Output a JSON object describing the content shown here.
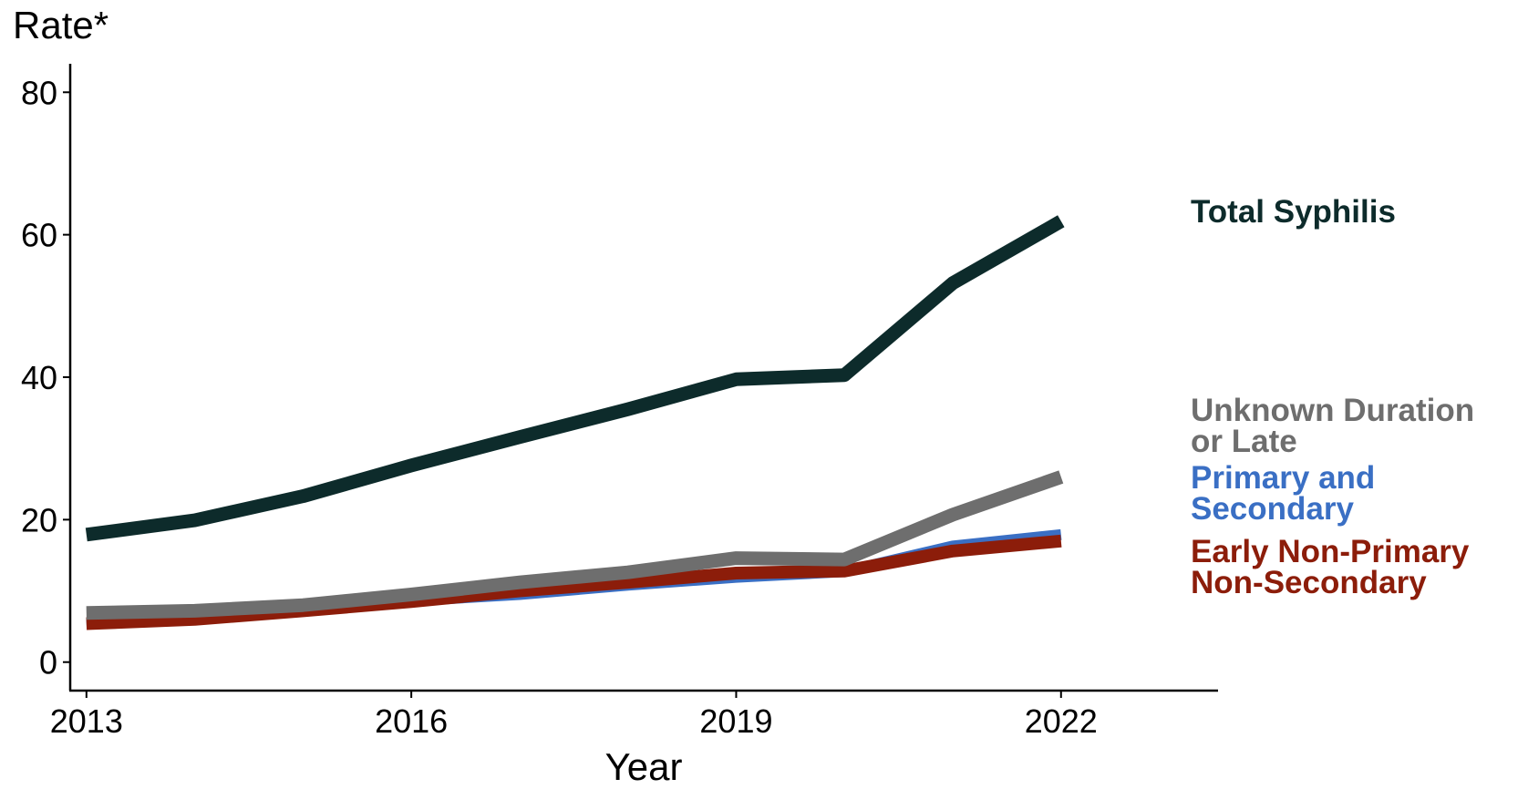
{
  "chart_data": {
    "type": "line",
    "title": "",
    "xlabel": "Year",
    "ylabel": "Rate*",
    "xlim": [
      2012.85,
      2023.45
    ],
    "ylim": [
      -4,
      84
    ],
    "x_ticks": [
      2013,
      2016,
      2019,
      2022
    ],
    "y_ticks": [
      0,
      20,
      40,
      60,
      80
    ],
    "grid": false,
    "legend": "direct labels at right end of lines",
    "x": [
      2013,
      2014,
      2015,
      2016,
      2017,
      2018,
      2019,
      2020,
      2021,
      2022
    ],
    "series": [
      {
        "name": "Total Syphilis",
        "label_lines": [
          "Total Syphilis"
        ],
        "color": "#0d2b2b",
        "values": [
          17.9,
          19.9,
          23.3,
          27.6,
          31.6,
          35.5,
          39.7,
          40.3,
          53.2,
          61.9
        ]
      },
      {
        "name": "Unknown Duration or Late",
        "label_lines": [
          "Unknown Duration",
          "or Late"
        ],
        "color": "#6e6e6e",
        "values": [
          6.9,
          7.2,
          8.0,
          9.5,
          11.2,
          12.6,
          14.6,
          14.4,
          20.7,
          26.0
        ]
      },
      {
        "name": "Primary and Secondary",
        "label_lines": [
          "Primary and",
          "Secondary"
        ],
        "color": "#3a6fc4",
        "values": [
          5.5,
          6.3,
          7.5,
          8.6,
          9.5,
          10.8,
          11.9,
          12.7,
          16.3,
          17.9
        ]
      },
      {
        "name": "Early Non-Primary Non-Secondary",
        "label_lines": [
          "Early Non-Primary",
          "Non-Secondary"
        ],
        "color": "#8c1d0a",
        "values": [
          5.4,
          6.0,
          7.2,
          8.5,
          10.0,
          11.2,
          12.5,
          12.8,
          15.6,
          17.0
        ]
      }
    ]
  }
}
